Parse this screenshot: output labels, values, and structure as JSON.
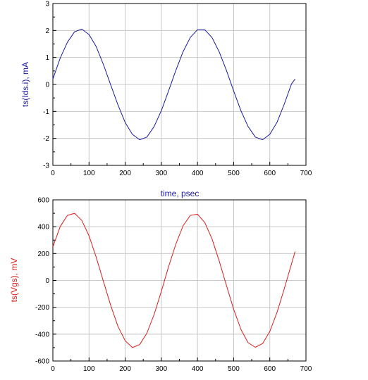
{
  "chart_data": [
    {
      "type": "line",
      "title": "",
      "xlabel": "time, psec",
      "ylabel": "ts(Ids.i), mA",
      "xlim": [
        0,
        700
      ],
      "ylim": [
        -3,
        3
      ],
      "xticks": [
        0,
        100,
        200,
        300,
        400,
        500,
        600,
        700
      ],
      "yticks": [
        -3,
        -2,
        -1,
        0,
        1,
        2,
        3
      ],
      "grid": true,
      "series": [
        {
          "color": "#1a1aa0",
          "x": [
            0,
            20,
            40,
            60,
            80,
            100,
            120,
            140,
            160,
            180,
            200,
            220,
            240,
            260,
            280,
            300,
            320,
            340,
            360,
            380,
            400,
            420,
            440,
            460,
            480,
            500,
            520,
            540,
            560,
            580,
            600,
            620,
            640,
            660,
            670
          ],
          "y": [
            0.2,
            0.97,
            1.56,
            1.95,
            2.05,
            1.85,
            1.4,
            0.73,
            -0.02,
            -0.76,
            -1.41,
            -1.85,
            -2.05,
            -1.95,
            -1.56,
            -0.97,
            -0.24,
            0.52,
            1.21,
            1.74,
            2.03,
            2.03,
            1.74,
            1.21,
            0.52,
            -0.24,
            -0.97,
            -1.56,
            -1.95,
            -2.05,
            -1.85,
            -1.4,
            -0.73,
            0.02,
            0.2
          ]
        }
      ]
    },
    {
      "type": "line",
      "title": "",
      "xlabel": "",
      "ylabel": "ts(Vgs), mV",
      "xlim": [
        0,
        700
      ],
      "ylim": [
        -600,
        600
      ],
      "xticks": [
        0,
        100,
        200,
        300,
        400,
        500,
        600,
        700
      ],
      "yticks": [
        -600,
        -400,
        -200,
        0,
        200,
        400,
        600
      ],
      "grid": true,
      "series": [
        {
          "color": "#dd1c1c",
          "x": [
            0,
            20,
            40,
            60,
            80,
            100,
            120,
            140,
            160,
            180,
            200,
            220,
            240,
            260,
            280,
            300,
            320,
            340,
            360,
            380,
            400,
            420,
            440,
            460,
            480,
            500,
            520,
            540,
            560,
            580,
            600,
            620,
            640,
            660,
            670
          ],
          "y": [
            250,
            400,
            484,
            500,
            447,
            332,
            172,
            -9,
            -187,
            -342,
            -449,
            -500,
            -478,
            -393,
            -254,
            -80,
            102,
            270,
            406,
            484,
            493,
            432,
            310,
            145,
            -37,
            -214,
            -364,
            -464,
            -498,
            -470,
            -380,
            -237,
            -63,
            123,
            215
          ]
        }
      ]
    }
  ]
}
